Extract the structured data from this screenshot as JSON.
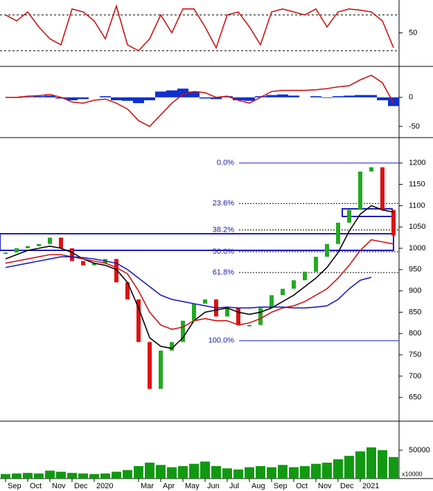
{
  "chart_data": [
    {
      "type": "line",
      "ylim": [
        -5,
        105
      ],
      "yticks": [
        50
      ],
      "reference_lines": [
        20,
        80
      ],
      "series": [
        {
          "color": "#cc1111",
          "values": [
            80,
            70,
            85,
            60,
            40,
            30,
            90,
            85,
            70,
            40,
            95,
            30,
            20,
            40,
            80,
            50,
            90,
            90,
            60,
            25,
            80,
            85,
            60,
            30,
            85,
            90,
            85,
            80,
            90,
            60,
            85,
            90,
            88,
            85,
            70,
            25
          ]
        }
      ]
    },
    {
      "type": "macd",
      "ylim": [
        -68,
        52
      ],
      "yticks": [
        0,
        -50
      ],
      "histogram_color": "#1030d0",
      "histogram": [
        0,
        -1,
        1,
        2,
        3,
        -2,
        -5,
        -3,
        0,
        2,
        -5,
        -6,
        -10,
        -5,
        10,
        12,
        15,
        10,
        -2,
        -3,
        2,
        -5,
        -6,
        2,
        4,
        5,
        3,
        0,
        2,
        -1,
        2,
        3,
        4,
        4,
        -5,
        -15
      ],
      "series": [
        {
          "color": "#cc1111",
          "values": [
            0,
            0,
            2,
            3,
            5,
            0,
            -8,
            -10,
            -5,
            -3,
            -10,
            -20,
            -40,
            -50,
            -30,
            -10,
            5,
            10,
            8,
            0,
            2,
            -5,
            -10,
            0,
            10,
            12,
            12,
            12,
            13,
            15,
            18,
            20,
            30,
            38,
            25,
            -10
          ]
        }
      ]
    },
    {
      "type": "candlestick",
      "ylim": [
        596,
        1258
      ],
      "yticks": [
        650,
        700,
        750,
        800,
        850,
        900,
        950,
        1000,
        1050,
        1100,
        1150,
        1200
      ],
      "up_color": "#22aa22",
      "down_color": "#dd1111",
      "values": [
        990,
        1000,
        1005,
        1010,
        1025,
        1000,
        970,
        960,
        965,
        975,
        920,
        880,
        780,
        670,
        760,
        780,
        830,
        870,
        880,
        840,
        860,
        820,
        820,
        860,
        890,
        905,
        925,
        945,
        980,
        1010,
        1060,
        1090,
        1180,
        1190,
        1090,
        1030
      ],
      "series": [
        {
          "color": "#000000",
          "values": [
            975,
            985,
            995,
            1000,
            1005,
            1000,
            990,
            975,
            965,
            960,
            950,
            920,
            860,
            790,
            770,
            765,
            790,
            830,
            850,
            855,
            860,
            850,
            845,
            850,
            860,
            875,
            890,
            910,
            930,
            955,
            990,
            1040,
            1080,
            1100,
            1090,
            1085
          ]
        },
        {
          "color": "#cc1111",
          "values": [
            965,
            970,
            975,
            980,
            985,
            985,
            980,
            975,
            970,
            965,
            955,
            940,
            900,
            850,
            820,
            810,
            815,
            830,
            835,
            830,
            830,
            820,
            825,
            835,
            850,
            860,
            865,
            875,
            890,
            905,
            930,
            960,
            995,
            1020,
            1015,
            1010
          ]
        },
        {
          "color": "#1a1ac0",
          "values": [
            955,
            960,
            965,
            970,
            975,
            980,
            980,
            978,
            975,
            970,
            965,
            950,
            930,
            910,
            890,
            880,
            875,
            870,
            865,
            860,
            862,
            860,
            860,
            862,
            862,
            862,
            860,
            860,
            862,
            865,
            880,
            905,
            925,
            932,
            null,
            null
          ]
        }
      ],
      "fib_levels": [
        {
          "label": "0.0%",
          "value": 1200
        },
        {
          "label": "23.6%",
          "value": 1105
        },
        {
          "label": "38.2%",
          "value": 1043
        },
        {
          "label": "50.0%",
          "value": 992
        },
        {
          "label": "61.8%",
          "value": 943
        },
        {
          "label": "100.0%",
          "value": 783
        }
      ]
    },
    {
      "type": "bar",
      "ylim": [
        0,
        100000
      ],
      "yticks": [
        50000
      ],
      "unit_label": "x10000",
      "color": "#119911",
      "values": [
        8000,
        9000,
        10000,
        9000,
        14000,
        12000,
        10000,
        9000,
        8000,
        9000,
        12000,
        15000,
        22000,
        28000,
        24000,
        20000,
        22000,
        26000,
        30000,
        22000,
        18000,
        16000,
        20000,
        22000,
        20000,
        24000,
        20000,
        22000,
        26000,
        28000,
        34000,
        40000,
        48000,
        55000,
        50000,
        38000
      ],
      "categories": [
        "Sep",
        null,
        "Oct",
        null,
        "Nov",
        null,
        "Dec",
        null,
        "2020",
        null,
        null,
        null,
        "Mar",
        null,
        "Apr",
        null,
        "May",
        null,
        "Jun",
        null,
        "Jul",
        null,
        "Aug",
        null,
        "Sep",
        null,
        "Oct",
        null,
        "Nov",
        null,
        "Dec",
        null,
        "2021",
        null,
        null,
        null
      ]
    }
  ]
}
